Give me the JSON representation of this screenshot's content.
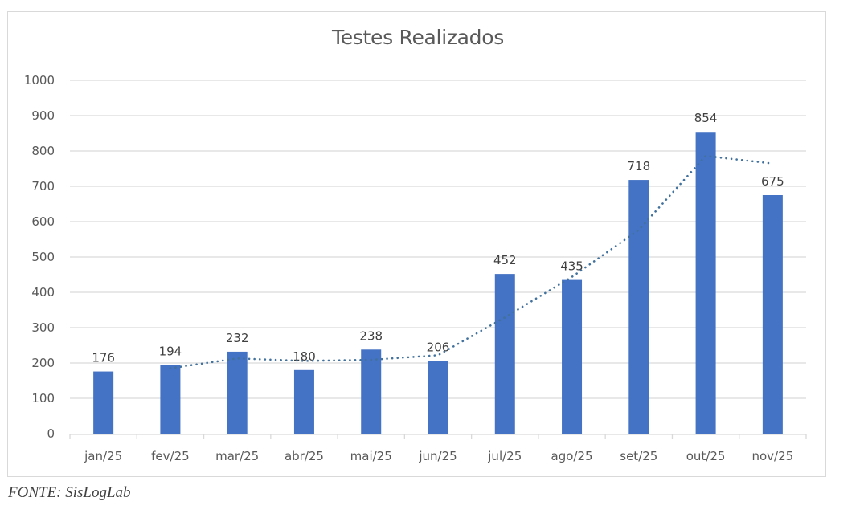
{
  "chart_data": {
    "type": "bar",
    "title": "Testes Realizados",
    "categories": [
      "jan/25",
      "fev/25",
      "mar/25",
      "abr/25",
      "mai/25",
      "jun/25",
      "jul/25",
      "ago/25",
      "set/25",
      "out/25",
      "nov/25"
    ],
    "series": [
      {
        "name": "Testes Realizados",
        "values": [
          176,
          194,
          232,
          180,
          238,
          206,
          452,
          435,
          718,
          854,
          675
        ],
        "color": "#4472c4"
      }
    ],
    "trendline": {
      "type": "moving_average",
      "period": 2,
      "style": "dotted",
      "color": "#41719c",
      "values": [
        null,
        185,
        213,
        206,
        209,
        222,
        329,
        443.5,
        576.5,
        786,
        764.5
      ]
    },
    "xlabel": "",
    "ylabel": "",
    "ylim": [
      0,
      1000
    ],
    "yticks": [
      0,
      100,
      200,
      300,
      400,
      500,
      600,
      700,
      800,
      900,
      1000
    ],
    "grid": true,
    "data_labels": true,
    "legend": null
  },
  "source_note": "FONTE: SisLogLab"
}
